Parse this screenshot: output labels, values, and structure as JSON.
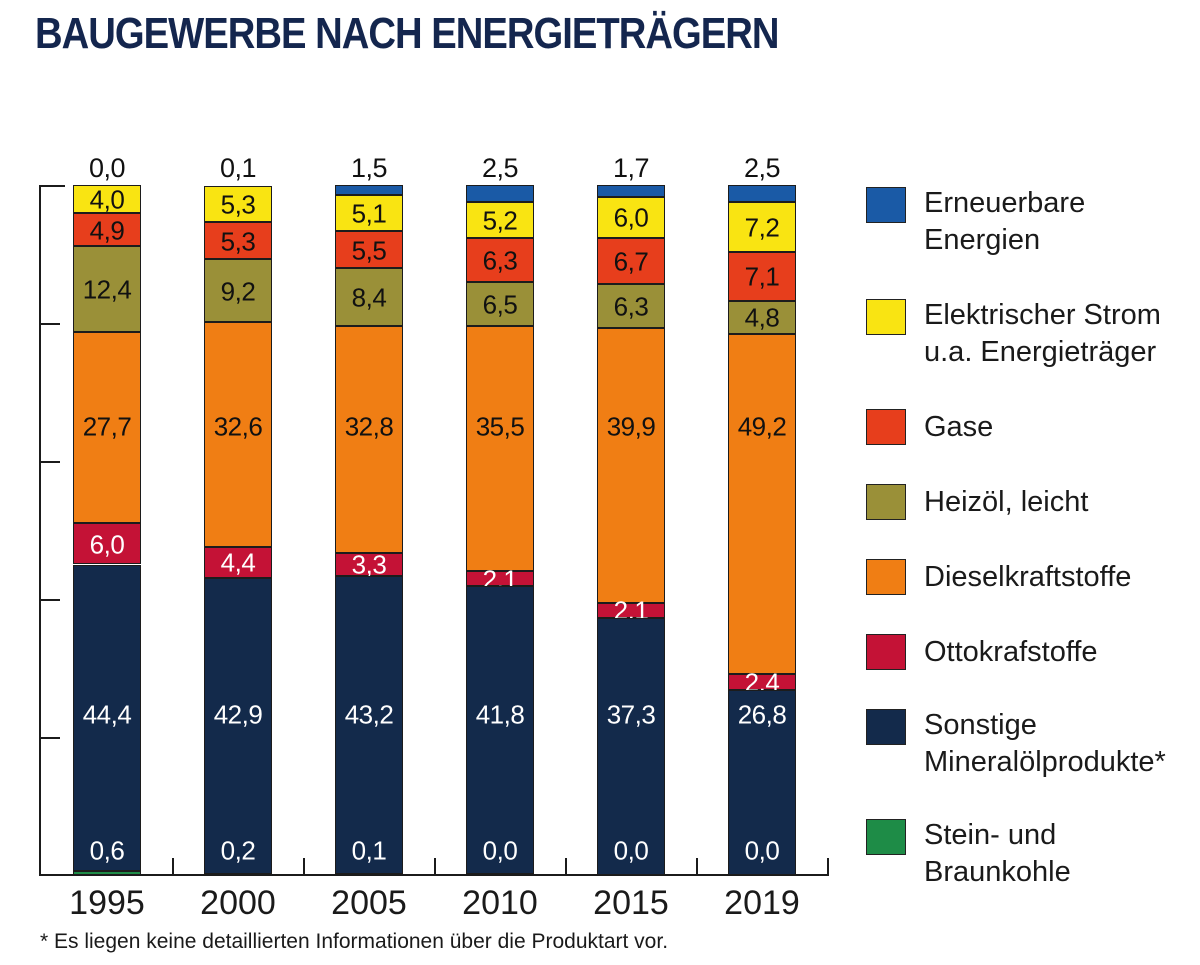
{
  "title": "BAUGEWERBE NACH ENERGIETRÄGERN",
  "footnote": "* Es liegen keine detaillierten Informationen über die Produktart vor.",
  "chart_data": {
    "type": "bar",
    "stacked": true,
    "title": "BAUGEWERBE NACH ENERGIETRÄGERN",
    "categories": [
      "1995",
      "2000",
      "2005",
      "2010",
      "2015",
      "2019"
    ],
    "ylim": [
      0,
      100
    ],
    "y_tick_interval": 20,
    "y_tick_labels_visible": false,
    "grid": false,
    "legend_position": "right",
    "decimal_separator": ",",
    "series": [
      {
        "name": "Erneuerbare Energien",
        "color": "#1A5AA6",
        "label_color": "#111111",
        "label_placement": "above",
        "values": [
          0.0,
          0.1,
          1.5,
          2.5,
          1.7,
          2.5
        ]
      },
      {
        "name": "Elektrischer Strom u.a. Energieträger",
        "color": "#F9E412",
        "label_color": "#111111",
        "label_placement": "segment-center",
        "values": [
          4.0,
          5.3,
          5.1,
          5.2,
          6.0,
          7.2
        ]
      },
      {
        "name": "Gase",
        "color": "#E73E1C",
        "label_color": "#111111",
        "label_placement": "segment-center",
        "values": [
          4.9,
          5.3,
          5.5,
          6.3,
          6.7,
          7.1
        ]
      },
      {
        "name": "Heizöl, leicht",
        "color": "#9A9038",
        "label_color": "#111111",
        "label_placement": "segment-center",
        "values": [
          12.4,
          9.2,
          8.4,
          6.5,
          6.3,
          4.8
        ]
      },
      {
        "name": "Dieselkraftstoffe",
        "color": "#F07E14",
        "label_color": "#111111",
        "label_placement": "band",
        "values": [
          27.7,
          32.6,
          32.8,
          35.5,
          39.9,
          49.2
        ]
      },
      {
        "name": "Ottokrafstoffe",
        "color": "#C41236",
        "label_color": "#ffffff",
        "label_placement": "segment-center",
        "values": [
          6.0,
          4.4,
          3.3,
          2.1,
          2.1,
          2.4
        ]
      },
      {
        "name": "Sonstige Mineralölprodukte*",
        "color": "#132A4B",
        "label_color": "#ffffff",
        "label_placement": "band",
        "values": [
          44.4,
          42.9,
          43.2,
          41.8,
          37.3,
          26.8
        ]
      },
      {
        "name": "Stein- und Braunkohle",
        "color": "#1E8C47",
        "label_color": "#ffffff",
        "label_placement": "band",
        "values": [
          0.6,
          0.2,
          0.1,
          0.0,
          0.0,
          0.0
        ]
      }
    ]
  },
  "legend": {
    "items": [
      {
        "color": "#1A5AA6",
        "lines": [
          "Erneuerbare",
          "Energien"
        ]
      },
      {
        "color": "#F9E412",
        "lines": [
          "Elektrischer Strom",
          "u.a. Energieträger"
        ]
      },
      {
        "color": "#E73E1C",
        "lines": [
          "Gase"
        ]
      },
      {
        "color": "#9A9038",
        "lines": [
          "Heizöl, leicht"
        ]
      },
      {
        "color": "#F07E14",
        "lines": [
          "Dieselkraftstoffe"
        ]
      },
      {
        "color": "#C41236",
        "lines": [
          "Ottokrafstoffe"
        ]
      },
      {
        "color": "#132A4B",
        "lines": [
          "Sonstige",
          "Mineralölprodukte*"
        ]
      },
      {
        "color": "#1E8C47",
        "lines": [
          "Stein- und",
          "Braunkohle"
        ]
      }
    ]
  }
}
